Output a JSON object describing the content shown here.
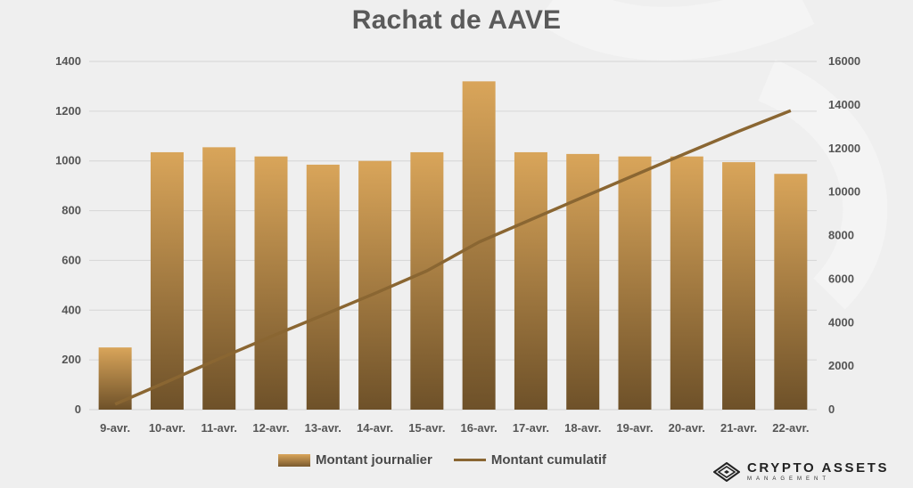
{
  "chart_data": {
    "type": "bar",
    "title": "Rachat de AAVE",
    "categories": [
      "9-avr.",
      "10-avr.",
      "11-avr.",
      "12-avr.",
      "13-avr.",
      "14-avr.",
      "15-avr.",
      "16-avr.",
      "17-avr.",
      "18-avr.",
      "19-avr.",
      "20-avr.",
      "21-avr.",
      "22-avr."
    ],
    "series": [
      {
        "name": "Montant journalier",
        "type": "bar",
        "axis": "left",
        "values": [
          250,
          1035,
          1055,
          1018,
          985,
          1000,
          1035,
          1320,
          1035,
          1028,
          1018,
          1018,
          995,
          948
        ]
      },
      {
        "name": "Montant cumulatif",
        "type": "line",
        "axis": "right",
        "values": [
          250,
          1285,
          2340,
          3358,
          4343,
          5343,
          6378,
          7698,
          8733,
          9761,
          10779,
          11797,
          12792,
          13740
        ]
      }
    ],
    "ylim_left": [
      0,
      1400
    ],
    "yticks_left": [
      0,
      200,
      400,
      600,
      800,
      1000,
      1200,
      1400
    ],
    "ylim_right": [
      0,
      16000
    ],
    "yticks_right": [
      0,
      2000,
      4000,
      6000,
      8000,
      10000,
      12000,
      14000,
      16000
    ],
    "grid": true,
    "legend_position": "bottom",
    "colors": {
      "bar_top": "#d9a55a",
      "bar_bottom": "#7a5a2e",
      "line": "#8a6632",
      "grid": "#d6d6d6",
      "title": "#5a5a5a"
    }
  },
  "logo": {
    "main": "CRYPTO ASSETS",
    "sub": "MANAGEMENT"
  }
}
